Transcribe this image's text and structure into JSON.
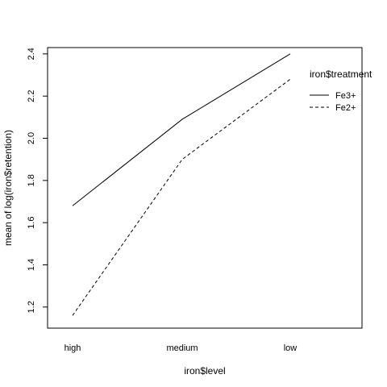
{
  "chart_data": {
    "type": "line",
    "title": "",
    "xlabel": "iron$level",
    "ylabel": "mean of  log(iron$retention)",
    "categories": [
      "high",
      "medium",
      "low"
    ],
    "ylim": [
      1.1,
      2.43
    ],
    "yticks": [
      "1.2",
      "1.4",
      "1.6",
      "1.8",
      "2.0",
      "2.2",
      "2.4"
    ],
    "grid": false,
    "legend": {
      "title": "iron$treatment",
      "placement": "top-right",
      "boxed": false
    },
    "series": [
      {
        "name": "Fe3+",
        "line_style": "solid",
        "color": "#000000",
        "values": [
          1.68,
          2.09,
          2.4
        ]
      },
      {
        "name": "Fe2+",
        "line_style": "dashed",
        "color": "#000000",
        "values": [
          1.16,
          1.9,
          2.28
        ]
      }
    ]
  }
}
